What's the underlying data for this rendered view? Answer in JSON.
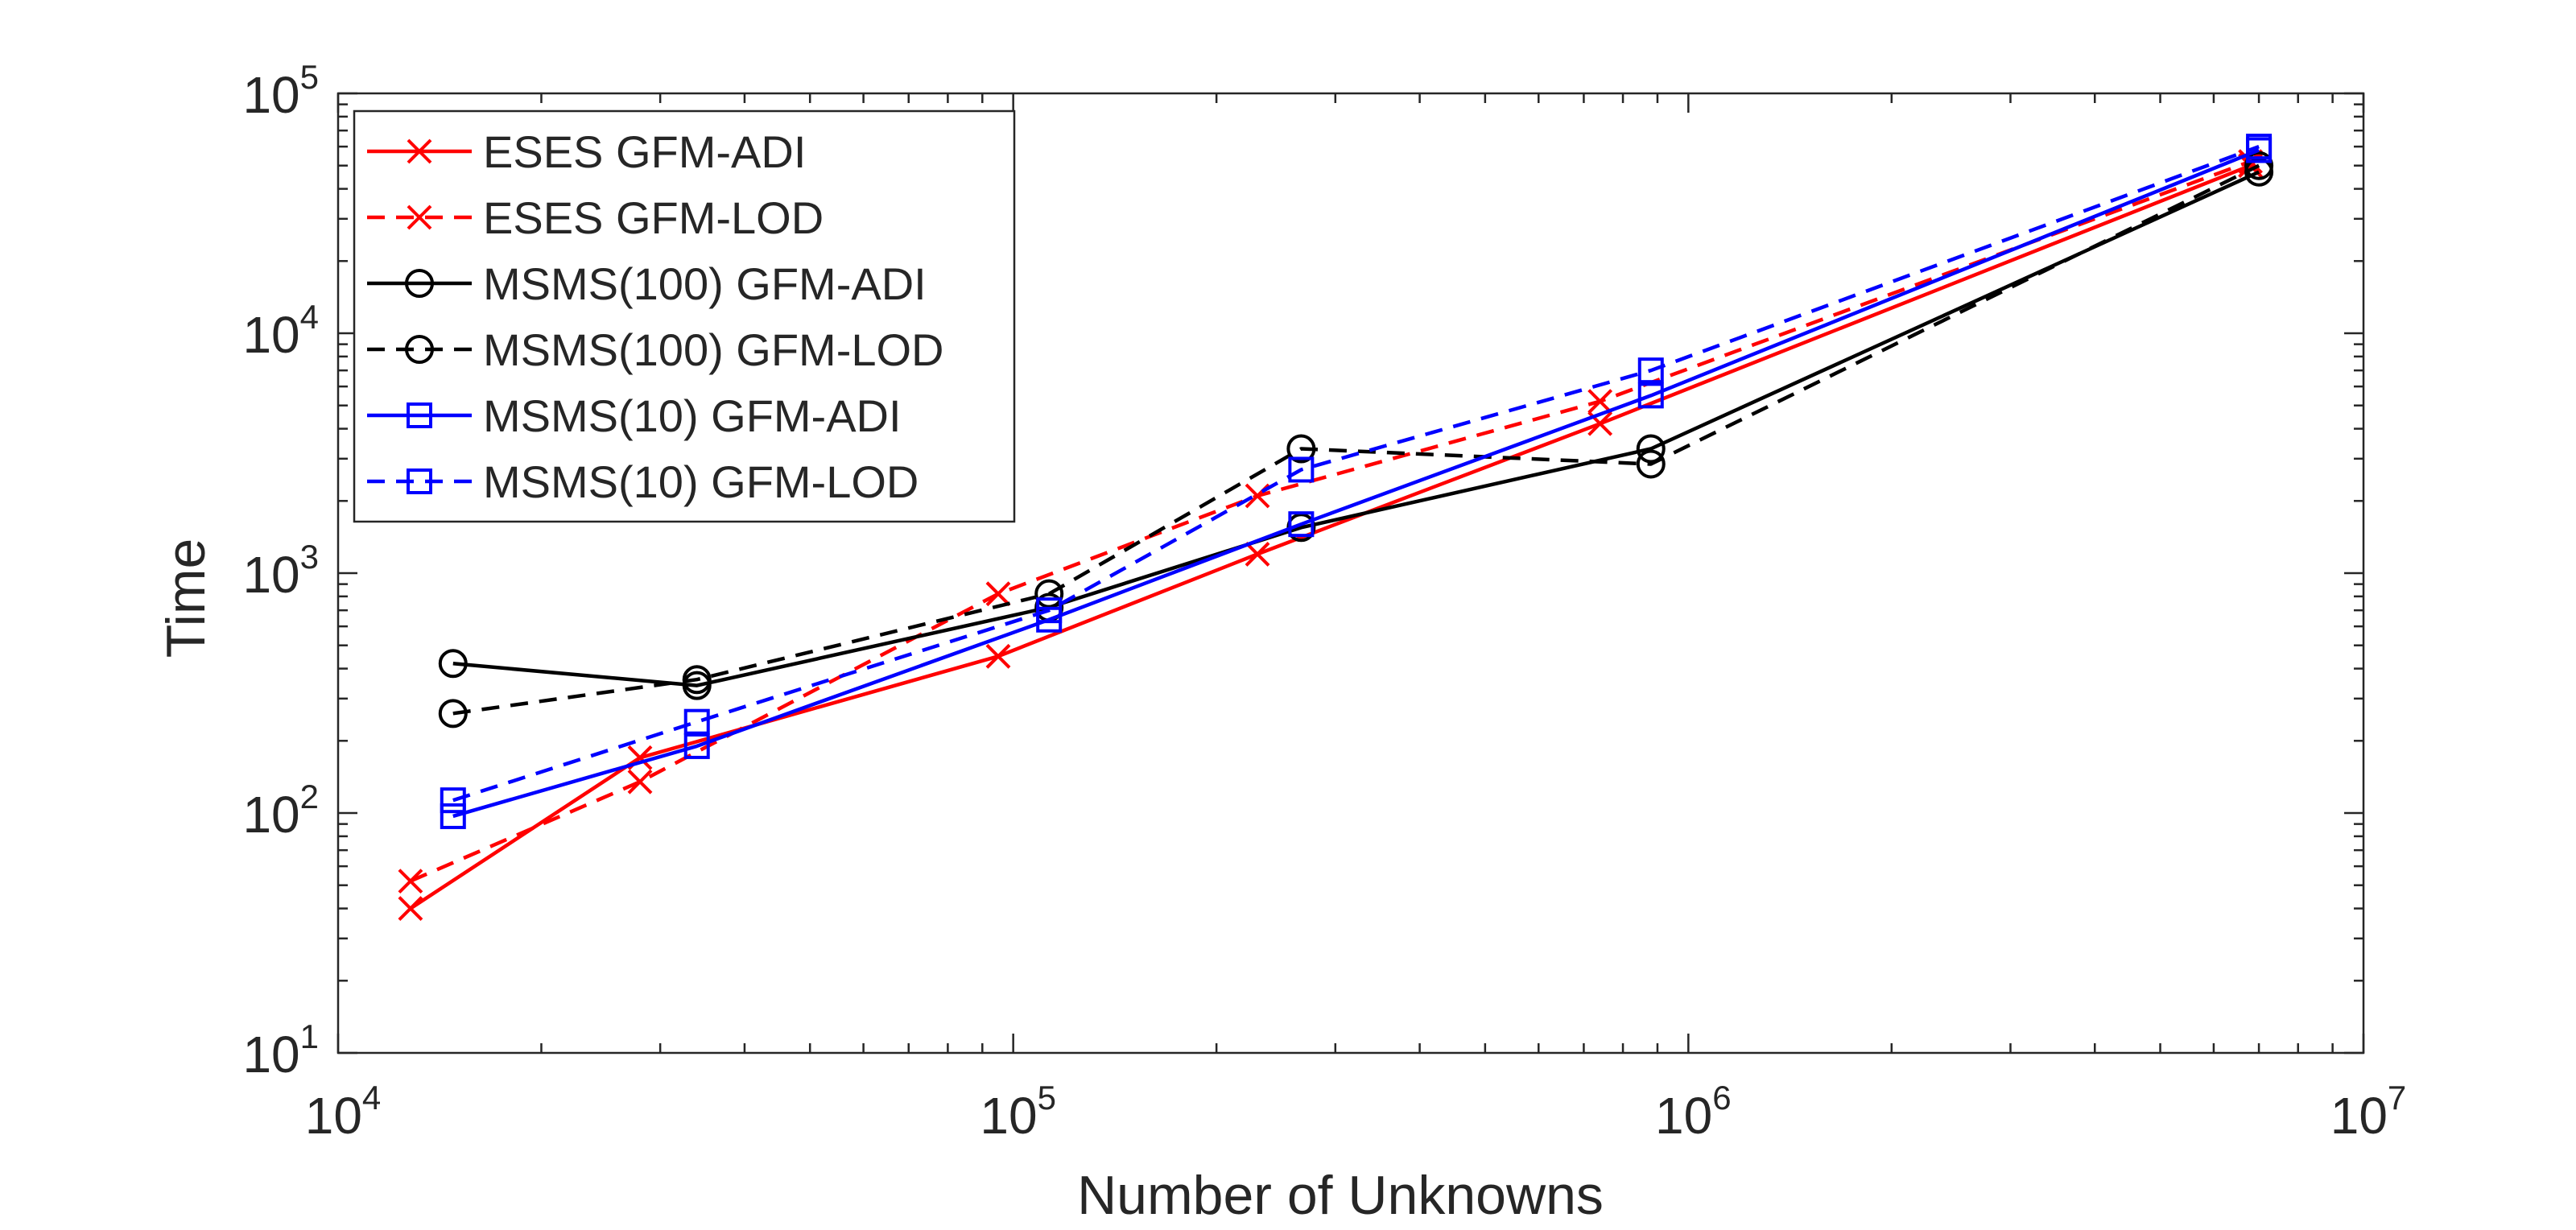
{
  "chart_data": {
    "type": "line",
    "title": "",
    "xlabel": "Number of Unknowns",
    "ylabel": "Time",
    "xscale": "log",
    "yscale": "log",
    "xlim": [
      10000,
      10000000
    ],
    "ylim": [
      10,
      100000
    ],
    "x_ticks": [
      {
        "value": 10000,
        "base": "10",
        "exp": "4"
      },
      {
        "value": 100000,
        "base": "10",
        "exp": "5"
      },
      {
        "value": 1000000,
        "base": "10",
        "exp": "6"
      },
      {
        "value": 10000000,
        "base": "10",
        "exp": "7"
      }
    ],
    "y_ticks": [
      {
        "value": 10,
        "base": "10",
        "exp": "1"
      },
      {
        "value": 100,
        "base": "10",
        "exp": "2"
      },
      {
        "value": 1000,
        "base": "10",
        "exp": "3"
      },
      {
        "value": 10000,
        "base": "10",
        "exp": "4"
      },
      {
        "value": 100000,
        "base": "10",
        "exp": "5"
      }
    ],
    "grid": false,
    "legend_position": "top-left",
    "series": [
      {
        "name": "ESES GFM-ADI",
        "color": "#ff0000",
        "dash": "solid",
        "marker": "x",
        "x": [
          12800,
          28000,
          95000,
          230000,
          740000,
          6800000
        ],
        "y": [
          40,
          170,
          450,
          1200,
          4200,
          50000
        ]
      },
      {
        "name": "ESES GFM-LOD",
        "color": "#ff0000",
        "dash": "dashed",
        "marker": "x",
        "x": [
          12800,
          28000,
          95000,
          230000,
          740000,
          6800000
        ],
        "y": [
          52,
          135,
          820,
          2100,
          5200,
          52000
        ]
      },
      {
        "name": "MSMS(100) GFM-ADI",
        "color": "#000000",
        "dash": "solid",
        "marker": "o",
        "x": [
          14800,
          34000,
          113000,
          267000,
          880000,
          7000000
        ],
        "y": [
          420,
          340,
          720,
          1550,
          3300,
          47000
        ]
      },
      {
        "name": "MSMS(100) GFM-LOD",
        "color": "#000000",
        "dash": "dashed",
        "marker": "o",
        "x": [
          14800,
          34000,
          113000,
          267000,
          880000,
          7000000
        ],
        "y": [
          260,
          360,
          820,
          3300,
          2850,
          50000
        ]
      },
      {
        "name": "MSMS(10) GFM-ADI",
        "color": "#0000ff",
        "dash": "solid",
        "marker": "s",
        "x": [
          14800,
          34000,
          113000,
          267000,
          880000,
          7000000
        ],
        "y": [
          97,
          190,
          640,
          1600,
          5500,
          58000
        ]
      },
      {
        "name": "MSMS(10) GFM-LOD",
        "color": "#0000ff",
        "dash": "dashed",
        "marker": "s",
        "x": [
          14800,
          34000,
          113000,
          267000,
          880000,
          7000000
        ],
        "y": [
          113,
          240,
          700,
          2700,
          7000,
          60000
        ]
      }
    ]
  }
}
